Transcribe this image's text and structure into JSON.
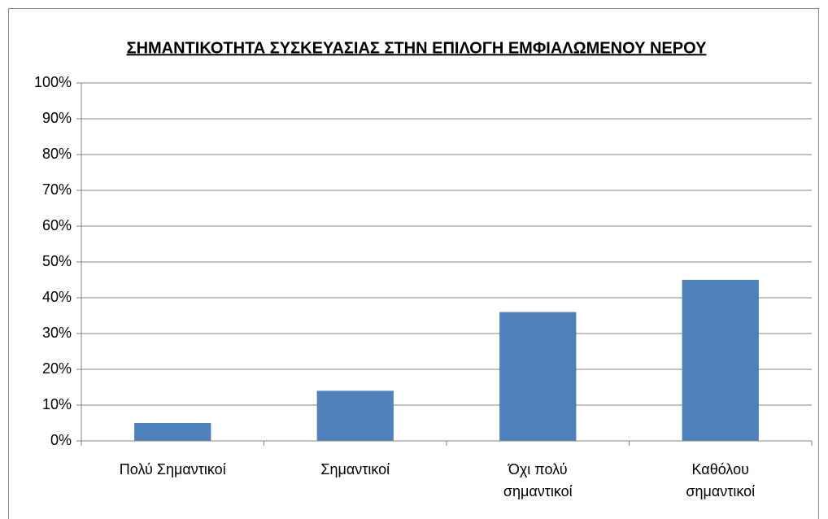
{
  "chart_data": {
    "type": "bar",
    "title": "ΣΗΜΑΝΤΙΚΟΤΗΤΑ ΣΥΣΚΕΥΑΣΙΑΣ ΣΤΗΝ ΕΠΙΛΟΓΗ ΕΜΦΙΑΛΩΜΕΝΟΥ ΝΕΡΟΥ",
    "categories": [
      "Πολύ Σημαντικοί",
      "Σημαντικοί",
      "Όχι πολύ\nσημαντικοί",
      "Καθόλου\nσημαντικοί"
    ],
    "values": [
      5,
      14,
      36,
      45
    ],
    "color": "#4f81bd",
    "ylim": [
      0,
      100
    ],
    "yticks": [
      {
        "value": 0,
        "label": "0%"
      },
      {
        "value": 10,
        "label": "10%"
      },
      {
        "value": 20,
        "label": "20%"
      },
      {
        "value": 30,
        "label": "30%"
      },
      {
        "value": 40,
        "label": "40%"
      },
      {
        "value": 50,
        "label": "50%"
      },
      {
        "value": 60,
        "label": "60%"
      },
      {
        "value": 70,
        "label": "70%"
      },
      {
        "value": 80,
        "label": "80%"
      },
      {
        "value": 90,
        "label": "90%"
      },
      {
        "value": 100,
        "label": "100%"
      }
    ],
    "grid": true
  }
}
